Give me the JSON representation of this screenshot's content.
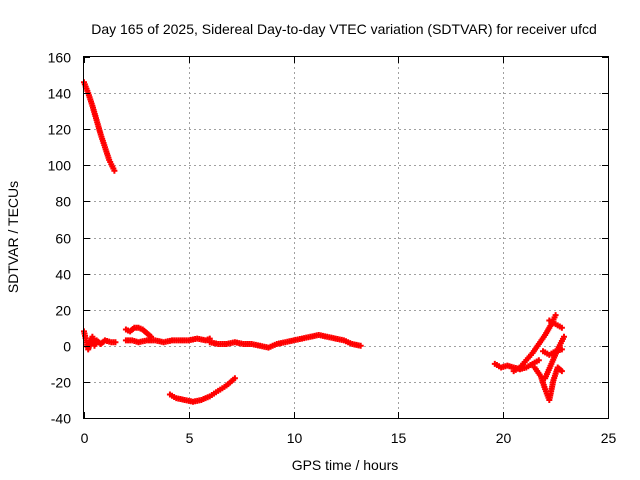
{
  "chart_data": {
    "type": "scatter",
    "title": "Day 165 of 2025, Sidereal Day-to-day VTEC variation (SDTVAR) for receiver ufcd",
    "xlabel": "GPS time / hours",
    "ylabel": "SDTVAR / TECUs",
    "xlim": [
      0,
      25
    ],
    "ylim": [
      -40,
      160
    ],
    "xticks": [
      0,
      5,
      10,
      15,
      20,
      25
    ],
    "yticks": [
      -40,
      -20,
      0,
      20,
      40,
      60,
      80,
      100,
      120,
      140,
      160
    ],
    "grid": true,
    "marker": "+",
    "color": "#ff0000",
    "series": [
      {
        "x": [
          0.0,
          0.2,
          0.4,
          0.6,
          0.8,
          1.0,
          1.2,
          1.45
        ],
        "y": [
          146,
          140,
          133,
          125,
          117,
          110,
          103,
          97
        ]
      },
      {
        "x": [
          0.0,
          0.1,
          0.2,
          0.3,
          0.4,
          0.5,
          0.6,
          0.8,
          1.0,
          1.3,
          1.5
        ],
        "y": [
          8,
          3,
          -2,
          2,
          5,
          0,
          3,
          1,
          3,
          2,
          2
        ]
      },
      {
        "x": [
          2.0,
          2.2,
          2.4,
          2.6,
          2.8,
          3.0,
          3.2
        ],
        "y": [
          9,
          8,
          10,
          10,
          9,
          7,
          5
        ]
      },
      {
        "x": [
          2.0,
          2.3,
          2.6,
          3.0,
          3.4,
          3.8,
          4.2,
          4.6,
          5.0,
          5.4,
          5.8,
          6.0
        ],
        "y": [
          3,
          3,
          2,
          3,
          3,
          2,
          3,
          3,
          3,
          4,
          3,
          4
        ]
      },
      {
        "x": [
          6.0,
          6.4,
          6.8,
          7.2,
          7.6,
          8.0,
          8.4,
          8.8,
          9.2,
          9.6,
          10.0,
          10.4,
          10.8,
          11.2,
          11.6,
          12.0,
          12.4,
          12.8,
          13.2
        ],
        "y": [
          2,
          1,
          1,
          2,
          1,
          1,
          0,
          -1,
          1,
          2,
          3,
          4,
          5,
          6,
          5,
          4,
          3,
          1,
          0
        ]
      },
      {
        "x": [
          4.1,
          4.4,
          4.8,
          5.2,
          5.6,
          6.0,
          6.4,
          6.8,
          7.2
        ],
        "y": [
          -27,
          -29,
          -30,
          -31,
          -30,
          -28,
          -25,
          -22,
          -18
        ]
      },
      {
        "x": [
          19.6,
          19.9,
          20.2,
          20.5,
          20.8,
          21.1,
          21.4,
          21.7
        ],
        "y": [
          -10,
          -12,
          -11,
          -12,
          -13,
          -12,
          -10,
          -8
        ]
      },
      {
        "x": [
          20.5,
          20.8,
          21.1,
          21.4,
          21.7,
          22.0,
          22.3,
          22.5
        ],
        "y": [
          -14,
          -12,
          -8,
          -4,
          1,
          6,
          12,
          17
        ]
      },
      {
        "x": [
          21.5,
          21.8,
          22.0,
          22.2,
          22.4,
          22.6,
          22.8
        ],
        "y": [
          -12,
          -17,
          -24,
          -30,
          -19,
          -12,
          -14
        ]
      },
      {
        "x": [
          21.9,
          22.2,
          22.5,
          22.8
        ],
        "y": [
          -3,
          -5,
          -3,
          -2
        ]
      },
      {
        "x": [
          22.0,
          22.3,
          22.6,
          22.9
        ],
        "y": [
          -18,
          -10,
          -2,
          5
        ]
      },
      {
        "x": [
          22.2,
          22.5,
          22.8
        ],
        "y": [
          14,
          12,
          10
        ]
      }
    ]
  }
}
